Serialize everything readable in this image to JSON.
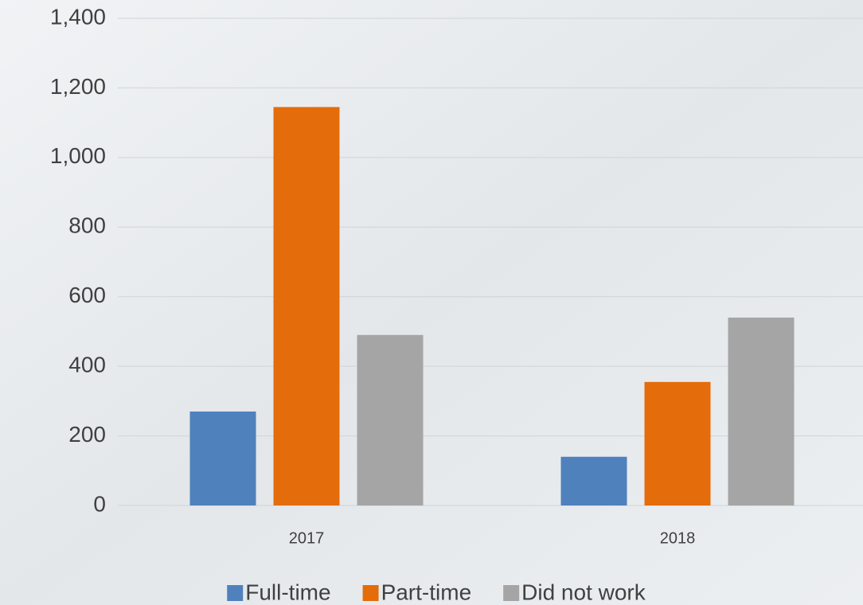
{
  "chart_data": {
    "type": "bar",
    "categories": [
      "2017",
      "2018"
    ],
    "series": [
      {
        "name": "Full-time",
        "color": "#4f81bd",
        "values": [
          270,
          140
        ]
      },
      {
        "name": "Part-time",
        "color": "#e46c0a",
        "values": [
          1145,
          355
        ]
      },
      {
        "name": "Did not work",
        "color": "#a5a5a5",
        "values": [
          490,
          540
        ]
      }
    ],
    "ylim": [
      0,
      1400
    ],
    "yticks": [
      0,
      200,
      400,
      600,
      800,
      {
        "value": 1000,
        "label": "1,000"
      },
      {
        "value": 1200,
        "label": "1,200"
      },
      {
        "value": 1400,
        "label": "1,400"
      }
    ],
    "grid": true,
    "legend": "bottom"
  }
}
